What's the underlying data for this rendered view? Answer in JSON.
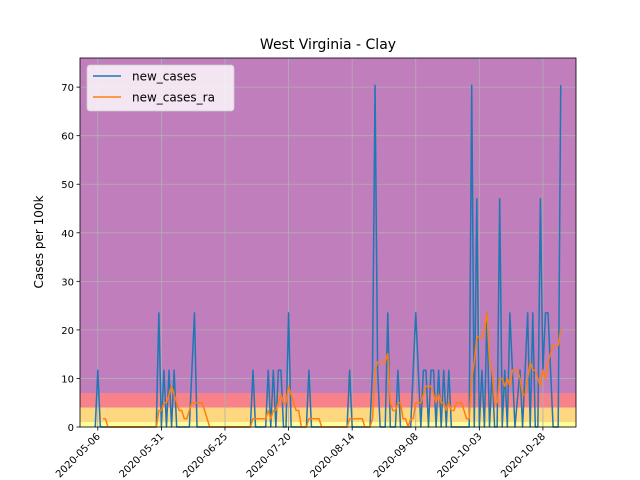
{
  "chart_data": {
    "type": "line",
    "title": "West Virginia - Clay",
    "xlabel": "",
    "ylabel": "Cases per 100k",
    "x_start": "2020-04-29",
    "x_end": "2020-11-10",
    "ylim": [
      0,
      76
    ],
    "yticks": [
      0,
      10,
      20,
      30,
      40,
      50,
      60,
      70
    ],
    "yticks_text": [
      "0",
      "10",
      "20",
      "30",
      "40",
      "50",
      "60",
      "70"
    ],
    "xticks": [
      "2020-05-06",
      "2020-05-31",
      "2020-06-25",
      "2020-07-20",
      "2020-08-14",
      "2020-09-08",
      "2020-10-03",
      "2020-10-28"
    ],
    "xticks_text": [
      "2020-05-06",
      "2020-05-31",
      "2020-06-25",
      "2020-07-20",
      "2020-08-14",
      "2020-09-08",
      "2020-10-03",
      "2020-10-28"
    ],
    "grid": true,
    "legend_position": "top-left",
    "risk_bands": [
      {
        "from": 0,
        "to": 1,
        "color": "#ffff9a"
      },
      {
        "from": 1,
        "to": 4,
        "color": "#fed880"
      },
      {
        "from": 4,
        "to": 7,
        "color": "#f7828a"
      },
      {
        "from": 7,
        "to": 76,
        "color": "#c07ebd"
      }
    ],
    "series": [
      {
        "name": "new_cases",
        "color": "#1f77b4",
        "points": [
          [
            "2020-05-05",
            0
          ],
          [
            "2020-05-06",
            11.7
          ],
          [
            "2020-05-07",
            0
          ],
          [
            "2020-05-29",
            0
          ],
          [
            "2020-05-30",
            23.5
          ],
          [
            "2020-05-31",
            0
          ],
          [
            "2020-06-01",
            11.7
          ],
          [
            "2020-06-02",
            0
          ],
          [
            "2020-06-03",
            11.7
          ],
          [
            "2020-06-04",
            0
          ],
          [
            "2020-06-05",
            11.7
          ],
          [
            "2020-06-06",
            0
          ],
          [
            "2020-06-11",
            0
          ],
          [
            "2020-06-13",
            23.5
          ],
          [
            "2020-06-14",
            0
          ],
          [
            "2020-07-05",
            0
          ],
          [
            "2020-07-06",
            11.7
          ],
          [
            "2020-07-07",
            0
          ],
          [
            "2020-07-11",
            0
          ],
          [
            "2020-07-12",
            11.7
          ],
          [
            "2020-07-13",
            0
          ],
          [
            "2020-07-14",
            11.7
          ],
          [
            "2020-07-15",
            0
          ],
          [
            "2020-07-16",
            11.7
          ],
          [
            "2020-07-17",
            11.7
          ],
          [
            "2020-07-18",
            0
          ],
          [
            "2020-07-19",
            0
          ],
          [
            "2020-07-20",
            23.5
          ],
          [
            "2020-07-21",
            0
          ],
          [
            "2020-07-27",
            0
          ],
          [
            "2020-07-28",
            11.7
          ],
          [
            "2020-07-29",
            0
          ],
          [
            "2020-08-12",
            0
          ],
          [
            "2020-08-13",
            11.7
          ],
          [
            "2020-08-14",
            0
          ],
          [
            "2020-08-21",
            0
          ],
          [
            "2020-08-22",
            11.7
          ],
          [
            "2020-08-23",
            70.4
          ],
          [
            "2020-08-24",
            11.7
          ],
          [
            "2020-08-25",
            0
          ],
          [
            "2020-08-27",
            0
          ],
          [
            "2020-08-28",
            23.5
          ],
          [
            "2020-08-29",
            0
          ],
          [
            "2020-08-31",
            0
          ],
          [
            "2020-09-01",
            11.7
          ],
          [
            "2020-09-02",
            0
          ],
          [
            "2020-09-06",
            0
          ],
          [
            "2020-09-08",
            23.5
          ],
          [
            "2020-09-09",
            11.7
          ],
          [
            "2020-09-10",
            0
          ],
          [
            "2020-09-11",
            11.7
          ],
          [
            "2020-09-12",
            11.7
          ],
          [
            "2020-09-13",
            0
          ],
          [
            "2020-09-14",
            11.7
          ],
          [
            "2020-09-15",
            11.7
          ],
          [
            "2020-09-16",
            0
          ],
          [
            "2020-09-17",
            11.7
          ],
          [
            "2020-09-18",
            0
          ],
          [
            "2020-09-19",
            11.7
          ],
          [
            "2020-09-20",
            0
          ],
          [
            "2020-09-21",
            11.7
          ],
          [
            "2020-09-22",
            0
          ],
          [
            "2020-09-29",
            0
          ],
          [
            "2020-09-30",
            70.4
          ],
          [
            "2020-10-01",
            0
          ],
          [
            "2020-10-02",
            47.0
          ],
          [
            "2020-10-03",
            0
          ],
          [
            "2020-10-04",
            11.7
          ],
          [
            "2020-10-05",
            0
          ],
          [
            "2020-10-06",
            23.5
          ],
          [
            "2020-10-07",
            0
          ],
          [
            "2020-10-08",
            11.7
          ],
          [
            "2020-10-09",
            0
          ],
          [
            "2020-10-10",
            0
          ],
          [
            "2020-10-11",
            47.0
          ],
          [
            "2020-10-12",
            0
          ],
          [
            "2020-10-13",
            11.7
          ],
          [
            "2020-10-14",
            0
          ],
          [
            "2020-10-15",
            23.5
          ],
          [
            "2020-10-16",
            11.7
          ],
          [
            "2020-10-17",
            0
          ],
          [
            "2020-10-19",
            11.7
          ],
          [
            "2020-10-20",
            0
          ],
          [
            "2020-10-21",
            11.7
          ],
          [
            "2020-10-22",
            23.5
          ],
          [
            "2020-10-23",
            0
          ],
          [
            "2020-10-24",
            23.5
          ],
          [
            "2020-10-25",
            0
          ],
          [
            "2020-10-26",
            0
          ],
          [
            "2020-10-27",
            47.0
          ],
          [
            "2020-10-28",
            11.7
          ],
          [
            "2020-10-29",
            23.5
          ],
          [
            "2020-10-30",
            23.5
          ],
          [
            "2020-10-31",
            11.7
          ],
          [
            "2020-11-01",
            0
          ],
          [
            "2020-11-03",
            0
          ],
          [
            "2020-11-04",
            70.4
          ]
        ]
      },
      {
        "name": "new_cases_ra",
        "color": "#ff7f0e",
        "points": [
          [
            "2020-05-08",
            1.7
          ],
          [
            "2020-05-09",
            1.7
          ],
          [
            "2020-05-10",
            0
          ],
          [
            "2020-05-29",
            0
          ],
          [
            "2020-05-30",
            3.4
          ],
          [
            "2020-05-31",
            3.4
          ],
          [
            "2020-06-01",
            5.0
          ],
          [
            "2020-06-02",
            5.0
          ],
          [
            "2020-06-03",
            6.7
          ],
          [
            "2020-06-04",
            8.4
          ],
          [
            "2020-06-05",
            6.7
          ],
          [
            "2020-06-06",
            5.0
          ],
          [
            "2020-06-07",
            3.4
          ],
          [
            "2020-06-08",
            3.4
          ],
          [
            "2020-06-09",
            1.7
          ],
          [
            "2020-06-10",
            1.7
          ],
          [
            "2020-06-11",
            3.4
          ],
          [
            "2020-06-12",
            5.0
          ],
          [
            "2020-06-13",
            5.0
          ],
          [
            "2020-06-14",
            5.0
          ],
          [
            "2020-06-15",
            5.0
          ],
          [
            "2020-06-16",
            5.0
          ],
          [
            "2020-06-17",
            3.4
          ],
          [
            "2020-06-18",
            1.7
          ],
          [
            "2020-06-19",
            0
          ],
          [
            "2020-07-05",
            0
          ],
          [
            "2020-07-06",
            1.7
          ],
          [
            "2020-07-07",
            1.7
          ],
          [
            "2020-07-08",
            1.7
          ],
          [
            "2020-07-09",
            1.7
          ],
          [
            "2020-07-10",
            1.7
          ],
          [
            "2020-07-11",
            1.7
          ],
          [
            "2020-07-12",
            3.4
          ],
          [
            "2020-07-13",
            1.7
          ],
          [
            "2020-07-14",
            3.4
          ],
          [
            "2020-07-15",
            3.4
          ],
          [
            "2020-07-16",
            5.0
          ],
          [
            "2020-07-17",
            6.7
          ],
          [
            "2020-07-18",
            5.0
          ],
          [
            "2020-07-19",
            5.0
          ],
          [
            "2020-07-20",
            8.4
          ],
          [
            "2020-07-21",
            6.7
          ],
          [
            "2020-07-22",
            5.0
          ],
          [
            "2020-07-23",
            3.4
          ],
          [
            "2020-07-24",
            3.4
          ],
          [
            "2020-07-25",
            0
          ],
          [
            "2020-07-27",
            0
          ],
          [
            "2020-07-28",
            1.7
          ],
          [
            "2020-07-29",
            1.7
          ],
          [
            "2020-07-30",
            1.7
          ],
          [
            "2020-07-31",
            1.7
          ],
          [
            "2020-08-01",
            1.7
          ],
          [
            "2020-08-02",
            0
          ],
          [
            "2020-08-12",
            0
          ],
          [
            "2020-08-13",
            1.7
          ],
          [
            "2020-08-14",
            1.7
          ],
          [
            "2020-08-15",
            1.7
          ],
          [
            "2020-08-16",
            1.7
          ],
          [
            "2020-08-17",
            1.7
          ],
          [
            "2020-08-18",
            1.7
          ],
          [
            "2020-08-19",
            0
          ],
          [
            "2020-08-21",
            0
          ],
          [
            "2020-08-22",
            1.7
          ],
          [
            "2020-08-23",
            11.7
          ],
          [
            "2020-08-24",
            13.4
          ],
          [
            "2020-08-25",
            13.4
          ],
          [
            "2020-08-26",
            13.4
          ],
          [
            "2020-08-27",
            13.4
          ],
          [
            "2020-08-28",
            15.1
          ],
          [
            "2020-08-29",
            5.0
          ],
          [
            "2020-08-30",
            3.4
          ],
          [
            "2020-08-31",
            3.4
          ],
          [
            "2020-09-01",
            5.0
          ],
          [
            "2020-09-02",
            5.0
          ],
          [
            "2020-09-03",
            1.7
          ],
          [
            "2020-09-04",
            1.7
          ],
          [
            "2020-09-05",
            0
          ],
          [
            "2020-09-06",
            1.7
          ],
          [
            "2020-09-07",
            1.7
          ],
          [
            "2020-09-08",
            5.0
          ],
          [
            "2020-09-09",
            5.0
          ],
          [
            "2020-09-10",
            5.0
          ],
          [
            "2020-09-11",
            6.7
          ],
          [
            "2020-09-12",
            8.4
          ],
          [
            "2020-09-13",
            8.4
          ],
          [
            "2020-09-14",
            8.4
          ],
          [
            "2020-09-15",
            6.7
          ],
          [
            "2020-09-16",
            5.0
          ],
          [
            "2020-09-17",
            6.7
          ],
          [
            "2020-09-18",
            5.0
          ],
          [
            "2020-09-19",
            5.0
          ],
          [
            "2020-09-20",
            3.4
          ],
          [
            "2020-09-21",
            5.0
          ],
          [
            "2020-09-22",
            3.4
          ],
          [
            "2020-09-23",
            3.4
          ],
          [
            "2020-09-24",
            5.0
          ],
          [
            "2020-09-25",
            5.0
          ],
          [
            "2020-09-26",
            5.0
          ],
          [
            "2020-09-27",
            3.4
          ],
          [
            "2020-09-28",
            1.7
          ],
          [
            "2020-09-29",
            1.7
          ],
          [
            "2020-09-30",
            10.0
          ],
          [
            "2020-10-01",
            13.4
          ],
          [
            "2020-10-02",
            18.5
          ],
          [
            "2020-10-03",
            18.5
          ],
          [
            "2020-10-04",
            18.5
          ],
          [
            "2020-10-05",
            20.1
          ],
          [
            "2020-10-06",
            23.5
          ],
          [
            "2020-10-07",
            13.4
          ],
          [
            "2020-10-08",
            11.7
          ],
          [
            "2020-10-09",
            5.0
          ],
          [
            "2020-10-10",
            5.0
          ],
          [
            "2020-10-11",
            10.0
          ],
          [
            "2020-10-12",
            10.0
          ],
          [
            "2020-10-13",
            8.4
          ],
          [
            "2020-10-14",
            10.0
          ],
          [
            "2020-10-15",
            8.4
          ],
          [
            "2020-10-16",
            11.7
          ],
          [
            "2020-10-17",
            11.7
          ],
          [
            "2020-10-18",
            11.7
          ],
          [
            "2020-10-19",
            10.0
          ],
          [
            "2020-10-20",
            6.7
          ],
          [
            "2020-10-21",
            6.7
          ],
          [
            "2020-10-22",
            10.0
          ],
          [
            "2020-10-23",
            13.4
          ],
          [
            "2020-10-24",
            11.7
          ],
          [
            "2020-10-25",
            11.7
          ],
          [
            "2020-10-26",
            10.0
          ],
          [
            "2020-10-27",
            8.4
          ],
          [
            "2020-10-28",
            11.7
          ],
          [
            "2020-10-29",
            10.0
          ],
          [
            "2020-10-30",
            13.4
          ],
          [
            "2020-10-31",
            15.1
          ],
          [
            "2020-11-01",
            16.8
          ],
          [
            "2020-11-02",
            16.8
          ],
          [
            "2020-11-03",
            16.8
          ],
          [
            "2020-11-04",
            20.1
          ]
        ]
      }
    ]
  }
}
